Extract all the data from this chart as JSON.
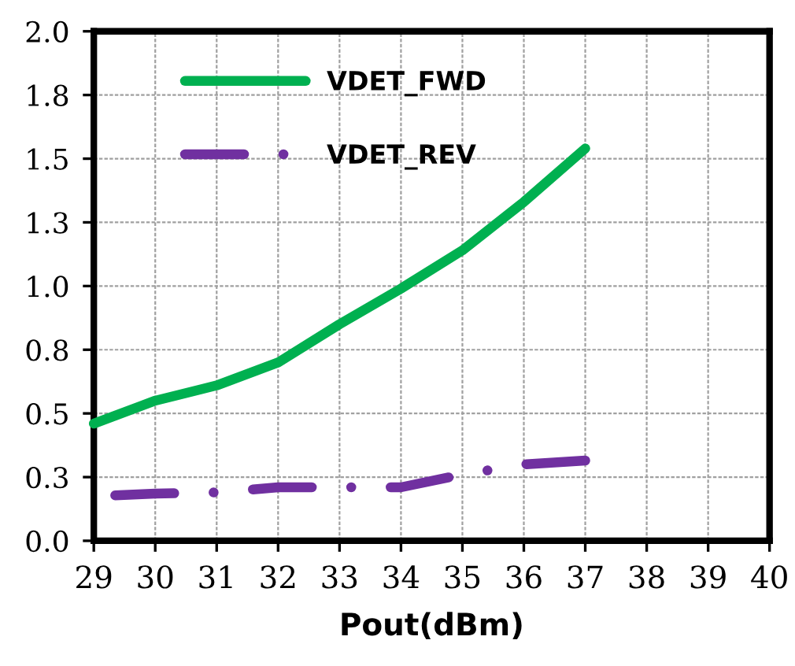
{
  "chart_data": {
    "type": "line",
    "xlabel": "Pout(dBm)",
    "x": [
      29,
      30,
      31,
      32,
      33,
      34,
      35,
      36,
      37
    ],
    "series": [
      {
        "name": "VDET_FWD",
        "color": "#00b050",
        "line_style": "solid",
        "values": [
          0.46,
          0.55,
          0.61,
          0.7,
          0.85,
          0.99,
          1.14,
          1.33,
          1.54
        ]
      },
      {
        "name": "VDET_REV",
        "color": "#7030a0",
        "line_style": "dashed",
        "values": [
          0.175,
          0.185,
          0.19,
          0.21,
          0.21,
          0.21,
          0.26,
          0.3,
          0.315
        ]
      }
    ],
    "xlim": [
      29,
      40
    ],
    "xticks": [
      29,
      30,
      31,
      32,
      33,
      34,
      35,
      36,
      37,
      38,
      39,
      40
    ],
    "ylim": [
      0,
      2.0
    ],
    "yticks": [
      {
        "value": 0,
        "label": "0.0"
      },
      {
        "value": 0.25,
        "label": "0.3"
      },
      {
        "value": 0.5,
        "label": "0.5"
      },
      {
        "value": 0.75,
        "label": "0.8"
      },
      {
        "value": 1.0,
        "label": "1.0"
      },
      {
        "value": 1.25,
        "label": "1.3"
      },
      {
        "value": 1.5,
        "label": "1.5"
      },
      {
        "value": 1.75,
        "label": "1.8"
      },
      {
        "value": 2.0,
        "label": "2.0"
      }
    ],
    "grid": true,
    "legend": "top left",
    "marker": "none"
  }
}
